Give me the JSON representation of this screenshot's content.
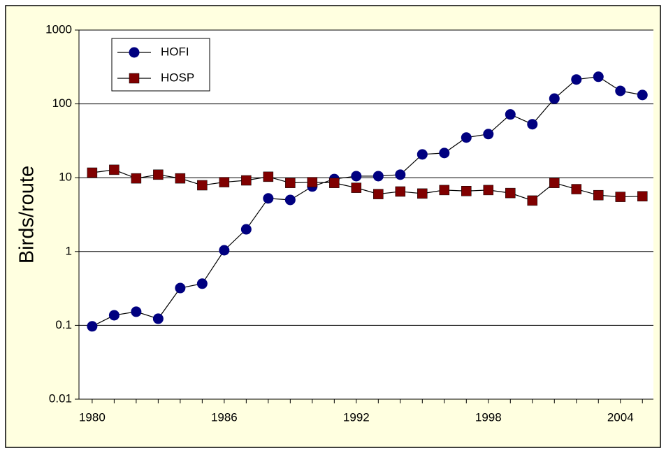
{
  "chart_data": {
    "type": "line",
    "y_label": "Birds/route",
    "x": [
      1980,
      1981,
      1982,
      1983,
      1984,
      1985,
      1986,
      1987,
      1988,
      1989,
      1990,
      1991,
      1992,
      1993,
      1994,
      1995,
      1996,
      1997,
      1998,
      1999,
      2000,
      2001,
      2002,
      2003,
      2004,
      2005
    ],
    "series": [
      {
        "name": "HOFI",
        "color": "#000080",
        "marker": "circle",
        "values": [
          0.097,
          0.137,
          0.153,
          0.123,
          0.32,
          0.367,
          1.04,
          2.0,
          5.25,
          5.0,
          7.6,
          9.6,
          10.5,
          10.5,
          11,
          20.7,
          21.6,
          35,
          39,
          72,
          53,
          118,
          214,
          233,
          150,
          132
        ]
      },
      {
        "name": "HOSP",
        "color": "#800000",
        "marker": "square",
        "values": [
          11.7,
          12.8,
          9.8,
          11,
          9.8,
          7.9,
          8.7,
          9.2,
          10.3,
          8.5,
          8.7,
          8.5,
          7.3,
          6.0,
          6.5,
          6.1,
          6.8,
          6.6,
          6.8,
          6.2,
          4.9,
          8.5,
          7.0,
          5.8,
          5.5,
          5.6
        ]
      }
    ],
    "line_color": "#000000",
    "xlim": [
      1979.4,
      2005.5
    ],
    "xticks": [
      1980,
      1986,
      1992,
      1998,
      2004
    ],
    "ylim": [
      0.01,
      1000
    ],
    "yticks": [
      0.01,
      0.1,
      1,
      10,
      100,
      1000
    ],
    "log_y": true,
    "grid": true,
    "legend": "upper-left"
  }
}
